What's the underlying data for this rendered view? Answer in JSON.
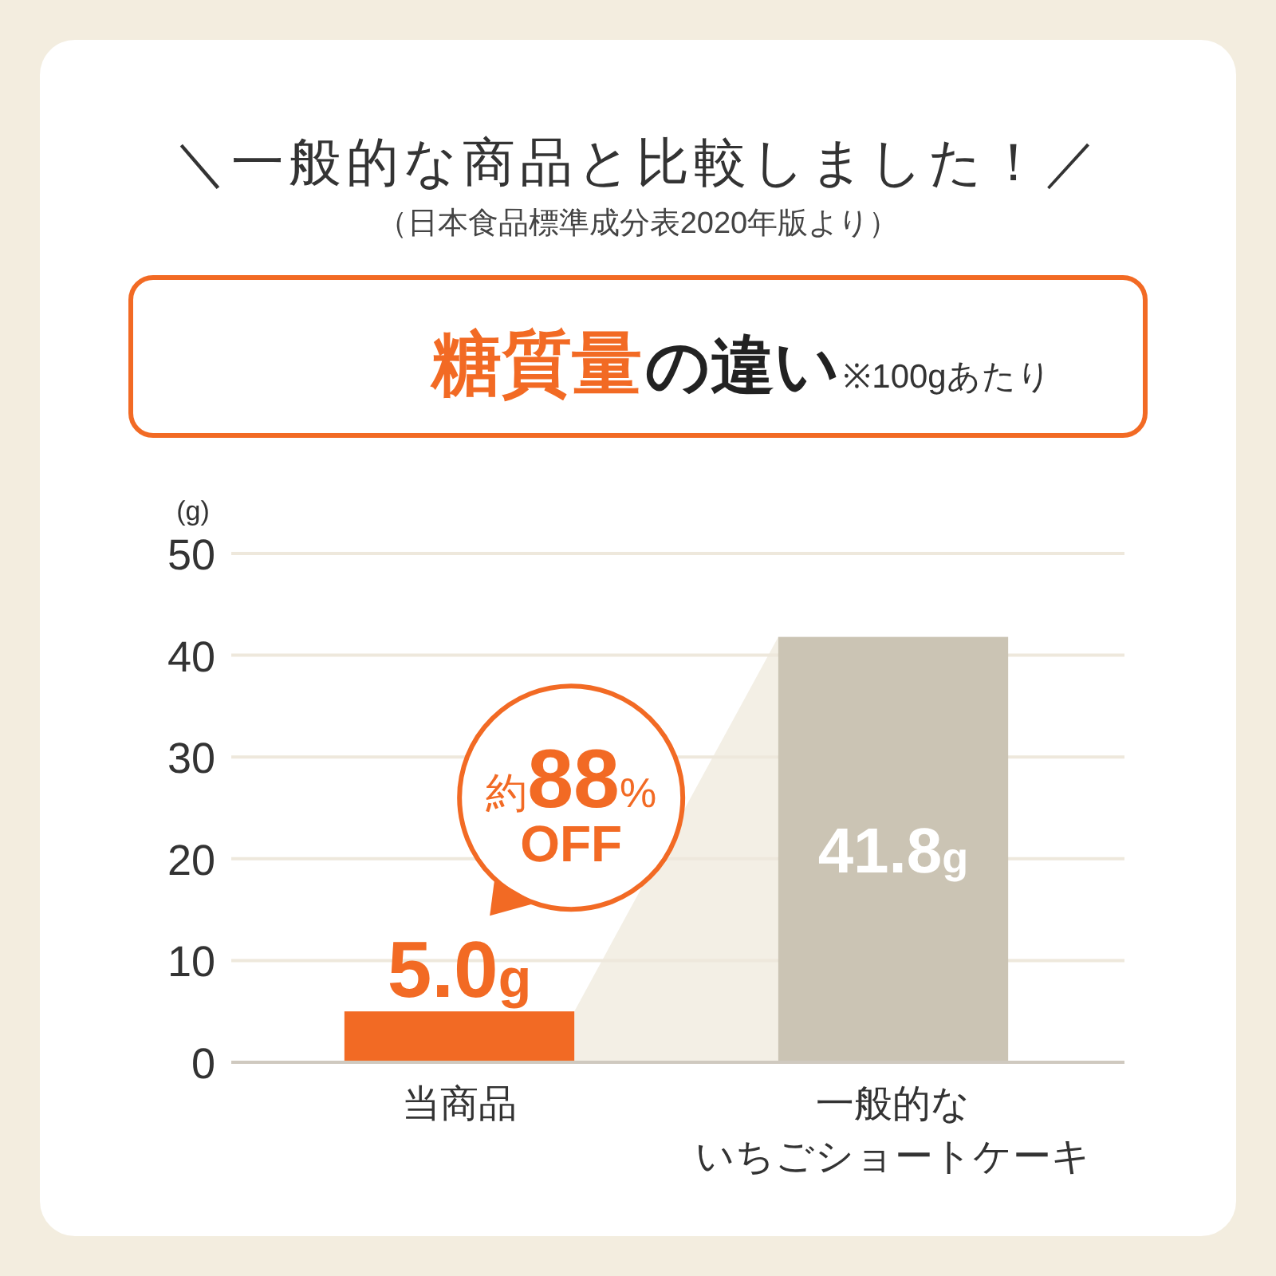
{
  "chart_data": {
    "type": "bar",
    "title": "＼一般的な商品と比較しました！／",
    "subtitle": "（日本食品標準成分表2020年版より）",
    "annotations": [
      "糖質量",
      "の違い",
      "※100gあたり",
      "約88%\nOFF"
    ],
    "ylabel": "(g)",
    "categories": [
      "当商品",
      "一般的ないちごショートケーキ"
    ],
    "values": [
      5.0,
      41.8
    ],
    "colors": [
      "#f26a24",
      "#cbc4b4"
    ],
    "value_labels": [
      "5.0g",
      "41.8g"
    ],
    "ylim": [
      0,
      50
    ],
    "yticks": [
      0,
      10,
      20,
      30,
      40,
      50
    ],
    "grid": "y"
  }
}
